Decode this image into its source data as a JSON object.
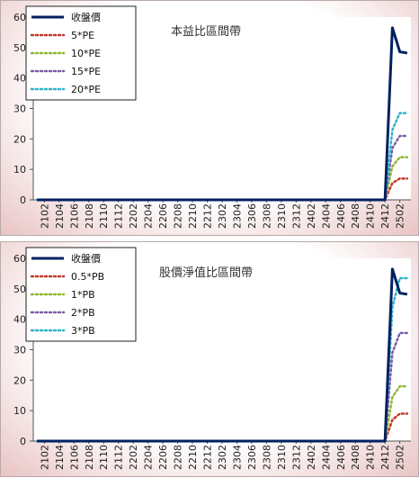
{
  "chart_data": [
    {
      "type": "line",
      "title": "本益比區間帶",
      "categories": [
        "2101",
        "2102",
        "2103",
        "2104",
        "2105",
        "2106",
        "2107",
        "2108",
        "2109",
        "2110",
        "2111",
        "2112",
        "2201",
        "2202",
        "2203",
        "2204",
        "2205",
        "2206",
        "2207",
        "2208",
        "2209",
        "2210",
        "2211",
        "2212",
        "2301",
        "2302",
        "2303",
        "2304",
        "2305",
        "2306",
        "2307",
        "2308",
        "2309",
        "2310",
        "2311",
        "2312",
        "2401",
        "2402",
        "2403",
        "2404",
        "2405",
        "2406",
        "2407",
        "2408",
        "2409",
        "2410",
        "2411",
        "2412",
        "2501",
        "2502",
        "2503"
      ],
      "tick_labels": [
        "2102",
        "2104",
        "2106",
        "2108",
        "2110",
        "2112",
        "2202",
        "2204",
        "2206",
        "2208",
        "2210",
        "2212",
        "2302",
        "2304",
        "2306",
        "2308",
        "2310",
        "2312",
        "2402",
        "2404",
        "2406",
        "2408",
        "2410",
        "2412",
        "2502"
      ],
      "ylim": [
        0,
        60
      ],
      "yticks": [
        0,
        10,
        20,
        30,
        40,
        50,
        60
      ],
      "legend_position": "top-left",
      "series": [
        {
          "name": "收盤價",
          "color": "#002060",
          "style": "solid",
          "values": [
            0,
            0,
            0,
            0,
            0,
            0,
            0,
            0,
            0,
            0,
            0,
            0,
            0,
            0,
            0,
            0,
            0,
            0,
            0,
            0,
            0,
            0,
            0,
            0,
            0,
            0,
            0,
            0,
            0,
            0,
            0,
            0,
            0,
            0,
            0,
            0,
            0,
            0,
            0,
            0,
            0,
            0,
            0,
            0,
            0,
            0,
            0,
            0,
            56.5,
            48.6,
            48.2
          ]
        },
        {
          "name": "5*PE",
          "color": "#c0392b",
          "style": "dotted",
          "values": [
            0,
            0,
            0,
            0,
            0,
            0,
            0,
            0,
            0,
            0,
            0,
            0,
            0,
            0,
            0,
            0,
            0,
            0,
            0,
            0,
            0,
            0,
            0,
            0,
            0,
            0,
            0,
            0,
            0,
            0,
            0,
            0,
            0,
            0,
            0,
            0,
            0,
            0,
            0,
            0,
            0,
            0,
            0,
            0,
            0,
            0,
            0,
            0,
            5.5,
            7,
            7
          ]
        },
        {
          "name": "10*PE",
          "color": "#8db832",
          "style": "dotted",
          "values": [
            0,
            0,
            0,
            0,
            0,
            0,
            0,
            0,
            0,
            0,
            0,
            0,
            0,
            0,
            0,
            0,
            0,
            0,
            0,
            0,
            0,
            0,
            0,
            0,
            0,
            0,
            0,
            0,
            0,
            0,
            0,
            0,
            0,
            0,
            0,
            0,
            0,
            0,
            0,
            0,
            0,
            0,
            0,
            0,
            0,
            0,
            0,
            0,
            11,
            14,
            14
          ]
        },
        {
          "name": "15*PE",
          "color": "#7b5ea7",
          "style": "dotted",
          "values": [
            0,
            0,
            0,
            0,
            0,
            0,
            0,
            0,
            0,
            0,
            0,
            0,
            0,
            0,
            0,
            0,
            0,
            0,
            0,
            0,
            0,
            0,
            0,
            0,
            0,
            0,
            0,
            0,
            0,
            0,
            0,
            0,
            0,
            0,
            0,
            0,
            0,
            0,
            0,
            0,
            0,
            0,
            0,
            0,
            0,
            0,
            0,
            0,
            17,
            21,
            21
          ]
        },
        {
          "name": "20*PE",
          "color": "#2fb3c9",
          "style": "dotted",
          "values": [
            0,
            0,
            0,
            0,
            0,
            0,
            0,
            0,
            0,
            0,
            0,
            0,
            0,
            0,
            0,
            0,
            0,
            0,
            0,
            0,
            0,
            0,
            0,
            0,
            0,
            0,
            0,
            0,
            0,
            0,
            0,
            0,
            0,
            0,
            0,
            0,
            0,
            0,
            0,
            0,
            0,
            0,
            0,
            0,
            0,
            0,
            0,
            0,
            23,
            28.5,
            28.5
          ]
        }
      ]
    },
    {
      "type": "line",
      "title": "股價淨值比區間帶",
      "categories": [
        "2101",
        "2102",
        "2103",
        "2104",
        "2105",
        "2106",
        "2107",
        "2108",
        "2109",
        "2110",
        "2111",
        "2112",
        "2201",
        "2202",
        "2203",
        "2204",
        "2205",
        "2206",
        "2207",
        "2208",
        "2209",
        "2210",
        "2211",
        "2212",
        "2301",
        "2302",
        "2303",
        "2304",
        "2305",
        "2306",
        "2307",
        "2308",
        "2309",
        "2310",
        "2311",
        "2312",
        "2401",
        "2402",
        "2403",
        "2404",
        "2405",
        "2406",
        "2407",
        "2408",
        "2409",
        "2410",
        "2411",
        "2412",
        "2501",
        "2502",
        "2503"
      ],
      "tick_labels": [
        "2102",
        "2104",
        "2106",
        "2108",
        "2110",
        "2112",
        "2202",
        "2204",
        "2206",
        "2208",
        "2210",
        "2212",
        "2302",
        "2304",
        "2306",
        "2308",
        "2310",
        "2312",
        "2402",
        "2404",
        "2406",
        "2408",
        "2410",
        "2412",
        "2502"
      ],
      "ylim": [
        0,
        60
      ],
      "yticks": [
        0,
        10,
        20,
        30,
        40,
        50,
        60
      ],
      "legend_position": "top-left",
      "series": [
        {
          "name": "收盤價",
          "color": "#002060",
          "style": "solid",
          "values": [
            0,
            0,
            0,
            0,
            0,
            0,
            0,
            0,
            0,
            0,
            0,
            0,
            0,
            0,
            0,
            0,
            0,
            0,
            0,
            0,
            0,
            0,
            0,
            0,
            0,
            0,
            0,
            0,
            0,
            0,
            0,
            0,
            0,
            0,
            0,
            0,
            0,
            0,
            0,
            0,
            0,
            0,
            0,
            0,
            0,
            0,
            0,
            0,
            56.5,
            48.6,
            48.2
          ]
        },
        {
          "name": "0.5*PB",
          "color": "#c0392b",
          "style": "dotted",
          "values": [
            0,
            0,
            0,
            0,
            0,
            0,
            0,
            0,
            0,
            0,
            0,
            0,
            0,
            0,
            0,
            0,
            0,
            0,
            0,
            0,
            0,
            0,
            0,
            0,
            0,
            0,
            0,
            0,
            0,
            0,
            0,
            0,
            0,
            0,
            0,
            0,
            0,
            0,
            0,
            0,
            0,
            0,
            0,
            0,
            0,
            0,
            0,
            0,
            7,
            9,
            9
          ]
        },
        {
          "name": "1*PB",
          "color": "#8db832",
          "style": "dotted",
          "values": [
            0,
            0,
            0,
            0,
            0,
            0,
            0,
            0,
            0,
            0,
            0,
            0,
            0,
            0,
            0,
            0,
            0,
            0,
            0,
            0,
            0,
            0,
            0,
            0,
            0,
            0,
            0,
            0,
            0,
            0,
            0,
            0,
            0,
            0,
            0,
            0,
            0,
            0,
            0,
            0,
            0,
            0,
            0,
            0,
            0,
            0,
            0,
            0,
            14.5,
            18,
            18
          ]
        },
        {
          "name": "2*PB",
          "color": "#7b5ea7",
          "style": "dotted",
          "values": [
            0,
            0,
            0,
            0,
            0,
            0,
            0,
            0,
            0,
            0,
            0,
            0,
            0,
            0,
            0,
            0,
            0,
            0,
            0,
            0,
            0,
            0,
            0,
            0,
            0,
            0,
            0,
            0,
            0,
            0,
            0,
            0,
            0,
            0,
            0,
            0,
            0,
            0,
            0,
            0,
            0,
            0,
            0,
            0,
            0,
            0,
            0,
            0,
            29,
            35.5,
            35.5
          ]
        },
        {
          "name": "3*PB",
          "color": "#2fb3c9",
          "style": "dotted",
          "values": [
            0,
            0,
            0,
            0,
            0,
            0,
            0,
            0,
            0,
            0,
            0,
            0,
            0,
            0,
            0,
            0,
            0,
            0,
            0,
            0,
            0,
            0,
            0,
            0,
            0,
            0,
            0,
            0,
            0,
            0,
            0,
            0,
            0,
            0,
            0,
            0,
            0,
            0,
            0,
            0,
            0,
            0,
            0,
            0,
            0,
            0,
            0,
            0,
            44,
            53.5,
            53.5
          ]
        }
      ]
    }
  ]
}
